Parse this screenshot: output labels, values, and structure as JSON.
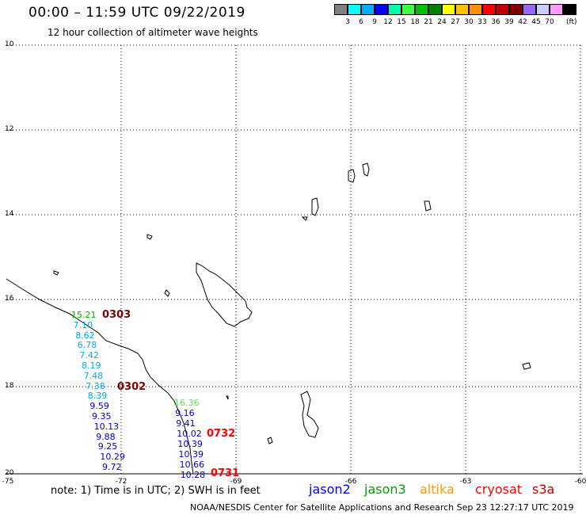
{
  "header": {
    "title": "00:00 – 11:59 UTC 09/22/2019",
    "subtitle": "12 hour collection of altimeter wave heights"
  },
  "colorbar": {
    "colors": [
      "#808080",
      "#00ffff",
      "#00b0ff",
      "#0000ff",
      "#00ffaa",
      "#40ff40",
      "#00c000",
      "#008000",
      "#ffff00",
      "#ffc000",
      "#ff9000",
      "#ff0000",
      "#c00000",
      "#800000",
      "#9966ff",
      "#ccccff",
      "#ff99ff",
      "#000000"
    ],
    "labels": [
      "3",
      "6",
      "9",
      "12",
      "15",
      "18",
      "21",
      "24",
      "27",
      "30",
      "33",
      "36",
      "39",
      "42",
      "45",
      "70"
    ],
    "unit": "(ft)"
  },
  "axes": {
    "lat_labels": [
      "10",
      "12",
      "14",
      "16",
      "18",
      "20"
    ],
    "lon_labels": [
      "-75",
      "-72",
      "-69",
      "-66",
      "-63",
      "-60"
    ]
  },
  "observations": {
    "track1": [
      {
        "v": "15.21",
        "c": "#00b000"
      },
      {
        "v": "7.10",
        "c": "#00aaee"
      },
      {
        "v": "8.62",
        "c": "#00aaee"
      },
      {
        "v": "6.78",
        "c": "#00aaee"
      },
      {
        "v": "7.42",
        "c": "#00aaee"
      },
      {
        "v": "8.19",
        "c": "#00aaee"
      },
      {
        "v": "7.48",
        "c": "#00aaee"
      },
      {
        "v": "7.38",
        "c": "#00aaee"
      },
      {
        "v": "8.39",
        "c": "#00aaee"
      },
      {
        "v": "9.59",
        "c": "#0000cc"
      },
      {
        "v": "9.35",
        "c": "#0000cc"
      },
      {
        "v": "10.13",
        "c": "#0000cc"
      },
      {
        "v": "9.88",
        "c": "#0000cc"
      },
      {
        "v": "9.25",
        "c": "#0000cc"
      },
      {
        "v": "10.29",
        "c": "#0000cc"
      },
      {
        "v": "9.72",
        "c": "#0000cc"
      }
    ],
    "track2": [
      {
        "v": "16.36",
        "c": "#60e060"
      },
      {
        "v": "9.16",
        "c": "#0000cc"
      },
      {
        "v": "9.41",
        "c": "#0000cc"
      },
      {
        "v": "10.02",
        "c": "#0000cc"
      },
      {
        "v": "10.39",
        "c": "#0000cc"
      },
      {
        "v": "10.39",
        "c": "#0000cc"
      },
      {
        "v": "10.66",
        "c": "#0000cc"
      },
      {
        "v": "10.28",
        "c": "#0000cc"
      }
    ]
  },
  "time_labels": [
    {
      "t": "0303",
      "c": "#800000"
    },
    {
      "t": "0302",
      "c": "#800000"
    },
    {
      "t": "0732",
      "c": "#ff0000"
    },
    {
      "t": "0731",
      "c": "#ff0000"
    }
  ],
  "note": "note: 1) Time is in UTC; 2) SWH is in feet",
  "satellites": [
    {
      "name": "jason2",
      "color": "#0000ff"
    },
    {
      "name": "jason3",
      "color": "#00a000"
    },
    {
      "name": "altika",
      "color": "#ff9900"
    },
    {
      "name": "cryosat",
      "color": "#ff0000"
    },
    {
      "name": "s3a",
      "color": "#c00000"
    }
  ],
  "footer": "NOAA/NESDIS Center for Satellite Applications and Research   Sep 23 12:27:17 UTC 2019"
}
